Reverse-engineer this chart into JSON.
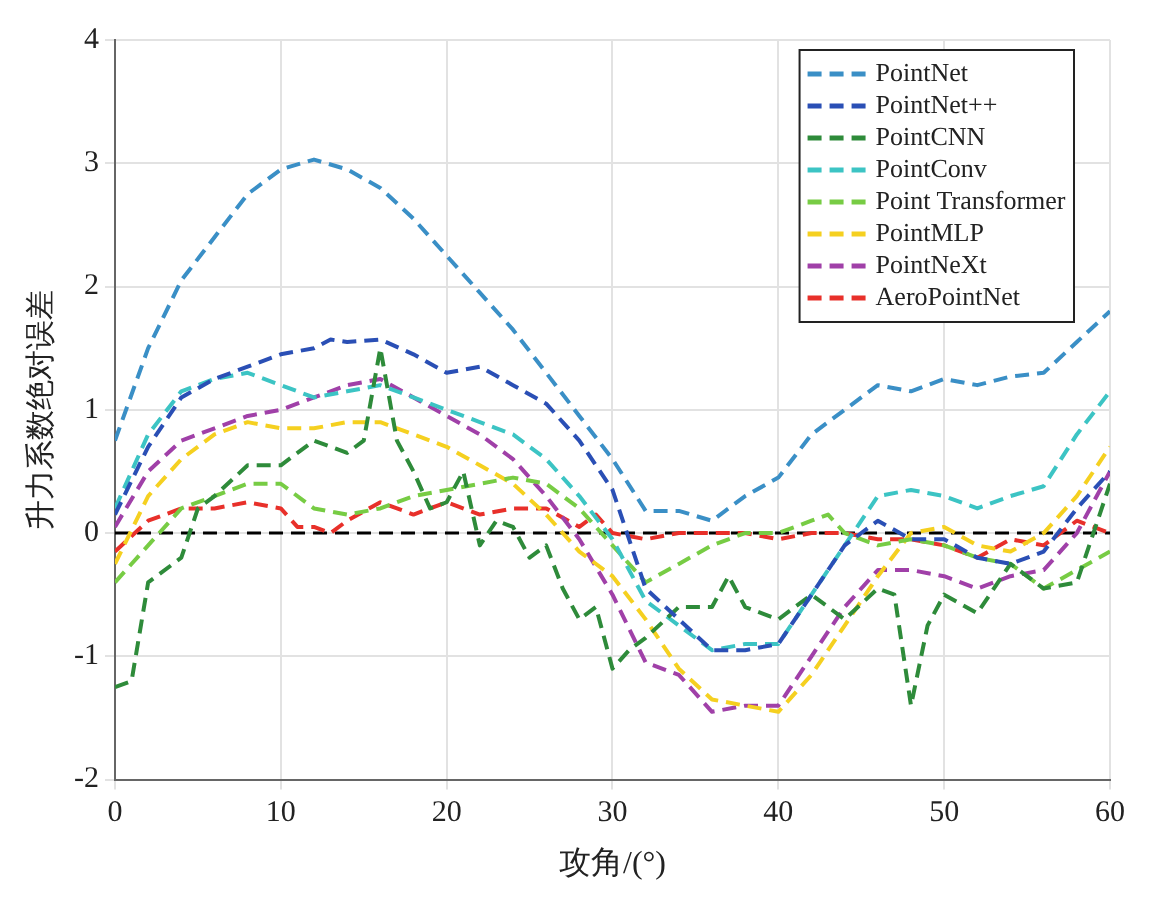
{
  "chart_data": {
    "type": "line",
    "xlabel": "攻角/(°)",
    "ylabel": "升力系数绝对误差",
    "xlim": [
      0,
      60
    ],
    "ylim": [
      -2,
      4
    ],
    "xticks": [
      0,
      10,
      20,
      30,
      40,
      50,
      60
    ],
    "yticks": [
      -2,
      -1,
      0,
      1,
      2,
      3,
      4
    ],
    "grid": true,
    "legend": "top right",
    "marker": "none",
    "line_style": "dashed",
    "ref_lines": [
      {
        "axis": "y",
        "value": 0,
        "color": "#000000",
        "line_style": "dashed"
      }
    ],
    "series": [
      {
        "name": "PointNet",
        "color": "#3a8fc6",
        "x": [
          0,
          2,
          4,
          6,
          8,
          10,
          12,
          14,
          16,
          18,
          20,
          22,
          24,
          26,
          28,
          30,
          32,
          34,
          36,
          38,
          40,
          42,
          44,
          46,
          48,
          50,
          52,
          54,
          56,
          58,
          60
        ],
        "values": [
          0.75,
          1.5,
          2.05,
          2.4,
          2.75,
          2.95,
          3.03,
          2.95,
          2.8,
          2.55,
          2.25,
          1.95,
          1.65,
          1.3,
          0.95,
          0.6,
          0.18,
          0.18,
          0.1,
          0.3,
          0.45,
          0.8,
          1.0,
          1.2,
          1.15,
          1.25,
          1.2,
          1.27,
          1.3,
          1.55,
          1.8
        ]
      },
      {
        "name": "PointNet++",
        "color": "#2a4fb5",
        "x": [
          0,
          2,
          4,
          6,
          8,
          10,
          12,
          13,
          14,
          16,
          18,
          20,
          22,
          24,
          26,
          28,
          30,
          32,
          34,
          36,
          38,
          40,
          42,
          44,
          46,
          48,
          50,
          52,
          54,
          56,
          58,
          60
        ],
        "values": [
          0.15,
          0.7,
          1.1,
          1.25,
          1.35,
          1.45,
          1.5,
          1.57,
          1.55,
          1.57,
          1.45,
          1.3,
          1.35,
          1.2,
          1.05,
          0.75,
          0.35,
          -0.45,
          -0.7,
          -0.95,
          -0.95,
          -0.9,
          -0.5,
          -0.1,
          0.1,
          -0.05,
          -0.05,
          -0.2,
          -0.25,
          -0.15,
          0.2,
          0.5
        ]
      },
      {
        "name": "PointCNN",
        "color": "#2e8b3a",
        "x": [
          0,
          1,
          2,
          4,
          5,
          6,
          8,
          10,
          12,
          14,
          15,
          16,
          17,
          18,
          19,
          20,
          21,
          22,
          23,
          24,
          25,
          26,
          27,
          28,
          29,
          30,
          31,
          32,
          34,
          36,
          37,
          38,
          40,
          42,
          44,
          46,
          47,
          48,
          49,
          50,
          52,
          54,
          56,
          58,
          60
        ],
        "values": [
          -1.25,
          -1.2,
          -0.4,
          -0.2,
          0.2,
          0.3,
          0.55,
          0.55,
          0.75,
          0.65,
          0.75,
          1.5,
          0.75,
          0.5,
          0.2,
          0.25,
          0.5,
          -0.1,
          0.1,
          0.05,
          -0.2,
          -0.1,
          -0.45,
          -0.7,
          -0.6,
          -1.1,
          -0.95,
          -0.85,
          -0.6,
          -0.6,
          -0.35,
          -0.6,
          -0.7,
          -0.5,
          -0.7,
          -0.45,
          -0.5,
          -1.4,
          -0.75,
          -0.5,
          -0.65,
          -0.25,
          -0.45,
          -0.4,
          0.4
        ]
      },
      {
        "name": "PointConv",
        "color": "#3cc4c4",
        "x": [
          0,
          2,
          4,
          6,
          8,
          10,
          12,
          14,
          16,
          18,
          20,
          22,
          24,
          26,
          28,
          30,
          32,
          34,
          36,
          38,
          40,
          42,
          44,
          46,
          48,
          50,
          52,
          54,
          56,
          58,
          60
        ],
        "values": [
          0.2,
          0.8,
          1.15,
          1.25,
          1.3,
          1.2,
          1.1,
          1.15,
          1.2,
          1.1,
          1.0,
          0.9,
          0.8,
          0.6,
          0.3,
          -0.05,
          -0.55,
          -0.75,
          -0.95,
          -0.9,
          -0.9,
          -0.5,
          -0.1,
          0.3,
          0.35,
          0.3,
          0.2,
          0.3,
          0.38,
          0.8,
          1.15
        ]
      },
      {
        "name": "Point Transformer",
        "color": "#77cc44",
        "x": [
          0,
          2,
          4,
          6,
          8,
          10,
          12,
          14,
          16,
          18,
          20,
          22,
          24,
          26,
          28,
          30,
          32,
          34,
          36,
          38,
          40,
          42,
          43,
          44,
          46,
          48,
          50,
          52,
          54,
          56,
          58,
          60
        ],
        "values": [
          -0.4,
          -0.1,
          0.2,
          0.3,
          0.4,
          0.4,
          0.2,
          0.15,
          0.2,
          0.3,
          0.35,
          0.4,
          0.45,
          0.4,
          0.2,
          -0.1,
          -0.4,
          -0.25,
          -0.1,
          0.0,
          0.0,
          0.1,
          0.15,
          0.0,
          -0.1,
          -0.05,
          -0.1,
          -0.2,
          -0.25,
          -0.45,
          -0.3,
          -0.15
        ]
      },
      {
        "name": "PointMLP",
        "color": "#f5d020",
        "x": [
          0,
          2,
          4,
          6,
          8,
          10,
          12,
          14,
          16,
          18,
          20,
          22,
          24,
          26,
          28,
          30,
          32,
          34,
          36,
          38,
          40,
          42,
          44,
          46,
          48,
          50,
          52,
          54,
          56,
          58,
          60
        ],
        "values": [
          -0.25,
          0.3,
          0.6,
          0.8,
          0.9,
          0.85,
          0.85,
          0.9,
          0.9,
          0.8,
          0.7,
          0.55,
          0.4,
          0.15,
          -0.15,
          -0.35,
          -0.7,
          -1.1,
          -1.35,
          -1.4,
          -1.45,
          -1.15,
          -0.75,
          -0.35,
          0.0,
          0.05,
          -0.1,
          -0.15,
          0.0,
          0.3,
          0.7
        ]
      },
      {
        "name": "PointNeXt",
        "color": "#a040a8",
        "x": [
          0,
          2,
          4,
          6,
          8,
          10,
          12,
          14,
          16,
          18,
          20,
          22,
          24,
          26,
          28,
          30,
          32,
          34,
          36,
          38,
          40,
          42,
          44,
          46,
          48,
          50,
          52,
          54,
          56,
          58,
          60
        ],
        "values": [
          0.05,
          0.5,
          0.75,
          0.85,
          0.95,
          1.0,
          1.1,
          1.2,
          1.25,
          1.1,
          0.95,
          0.8,
          0.6,
          0.3,
          -0.05,
          -0.5,
          -1.05,
          -1.15,
          -1.45,
          -1.4,
          -1.4,
          -1.0,
          -0.6,
          -0.3,
          -0.3,
          -0.35,
          -0.45,
          -0.35,
          -0.3,
          0.0,
          0.5
        ]
      },
      {
        "name": "AeroPointNet",
        "color": "#e8302a",
        "x": [
          0,
          2,
          4,
          6,
          8,
          10,
          11,
          12,
          13,
          14,
          16,
          18,
          20,
          22,
          24,
          26,
          28,
          29,
          30,
          32,
          34,
          36,
          38,
          40,
          42,
          44,
          46,
          48,
          50,
          52,
          54,
          56,
          58,
          60
        ],
        "values": [
          -0.15,
          0.1,
          0.2,
          0.2,
          0.25,
          0.2,
          0.05,
          0.05,
          0.0,
          0.1,
          0.25,
          0.15,
          0.25,
          0.15,
          0.2,
          0.2,
          0.05,
          0.15,
          0.0,
          -0.05,
          0.0,
          0.0,
          0.0,
          -0.05,
          0.0,
          0.0,
          -0.05,
          -0.05,
          -0.1,
          -0.2,
          -0.05,
          -0.1,
          0.1,
          0.0
        ]
      }
    ]
  }
}
